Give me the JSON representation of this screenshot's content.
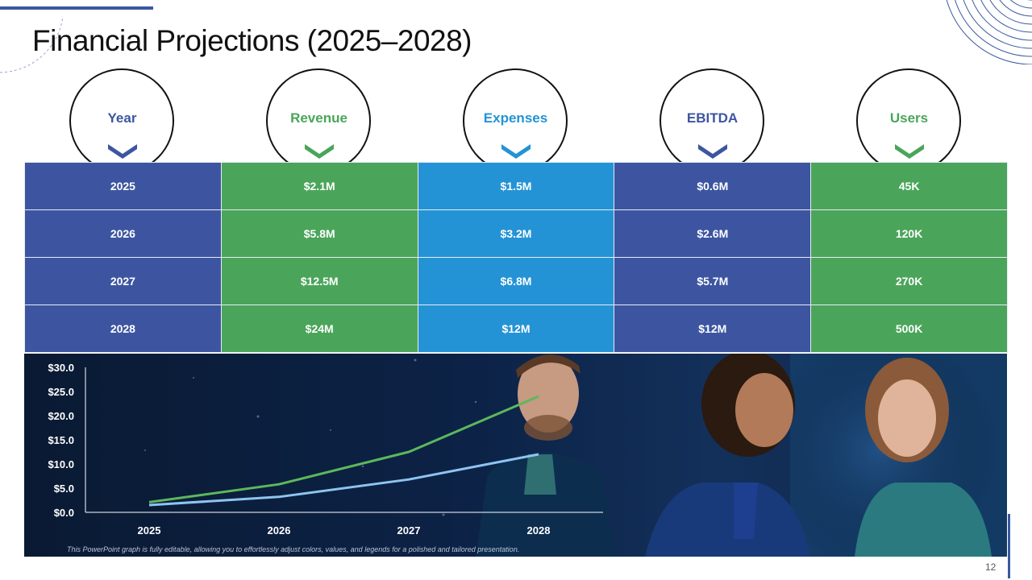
{
  "slide": {
    "title": "Financial Projections (2025–2028)",
    "page_number": "12"
  },
  "columns": [
    {
      "label": "Year",
      "color": "#3d55a1"
    },
    {
      "label": "Revenue",
      "color": "#4aa55a"
    },
    {
      "label": "Expenses",
      "color": "#2493d5"
    },
    {
      "label": "EBITDA",
      "color": "#3d55a1"
    },
    {
      "label": "Users",
      "color": "#4aa55a"
    }
  ],
  "rows": [
    [
      "2025",
      "$2.1M",
      "$1.5M",
      "$0.6M",
      "45K"
    ],
    [
      "2026",
      "$5.8M",
      "$3.2M",
      "$2.6M",
      "120K"
    ],
    [
      "2027",
      "$12.5M",
      "$6.8M",
      "$5.7M",
      "270K"
    ],
    [
      "2028",
      "$24M",
      "$12M",
      "$12M",
      "500K"
    ]
  ],
  "chart_data": {
    "type": "line",
    "x": [
      "2025",
      "2026",
      "2027",
      "2028"
    ],
    "series": [
      {
        "name": "Revenue",
        "values": [
          2.1,
          5.8,
          12.5,
          24
        ],
        "color": "#5cb85c"
      },
      {
        "name": "Expenses",
        "values": [
          1.5,
          3.2,
          6.8,
          12
        ],
        "color": "#8ec4f0"
      }
    ],
    "ylim": [
      0,
      30
    ],
    "yticks": [
      0,
      5,
      10,
      15,
      20,
      25,
      30
    ],
    "ytick_labels": [
      "$0.0",
      "$5.0",
      "$10.0",
      "$15.0",
      "$20.0",
      "$25.0",
      "$30.0"
    ],
    "title": "",
    "xlabel": "",
    "ylabel": "",
    "legend": "none"
  },
  "footnote": "This PowerPoint graph is fully editable, allowing you to effortlessly adjust colors, values, and legends for a polished and tailored presentation."
}
